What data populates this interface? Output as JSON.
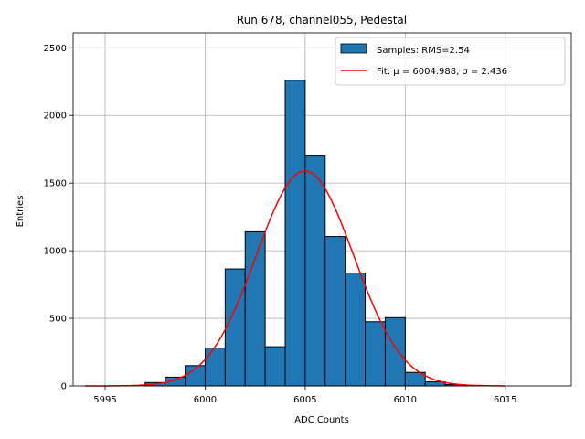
{
  "chart_data": {
    "type": "histogram",
    "title": "Run 678, channel055, Pedestal",
    "xlabel": "ADC Counts",
    "ylabel": "Entries",
    "xlim": [
      5993.4,
      6018.3
    ],
    "ylim": [
      0,
      2610
    ],
    "xticks": [
      5995,
      6000,
      6005,
      6010,
      6015
    ],
    "yticks": [
      0,
      500,
      1000,
      1500,
      2000,
      2500
    ],
    "grid": true,
    "bin_width": 1,
    "bins": [
      {
        "left": 5997,
        "value": 25
      },
      {
        "left": 5998,
        "value": 65
      },
      {
        "left": 5999,
        "value": 150
      },
      {
        "left": 6000,
        "value": 280
      },
      {
        "left": 6001,
        "value": 865
      },
      {
        "left": 6002,
        "value": 1140
      },
      {
        "left": 6003,
        "value": 290
      },
      {
        "left": 6004,
        "value": 2260
      },
      {
        "left": 6005,
        "value": 1700
      },
      {
        "left": 6006,
        "value": 1105
      },
      {
        "left": 6007,
        "value": 835
      },
      {
        "left": 6008,
        "value": 475
      },
      {
        "left": 6009,
        "value": 505
      },
      {
        "left": 6010,
        "value": 100
      },
      {
        "left": 6011,
        "value": 30
      },
      {
        "left": 6012,
        "value": 10
      },
      {
        "left": 6013,
        "value": 3
      }
    ],
    "fit": {
      "mu": 6004.988,
      "sigma": 2.436,
      "amplitude": 1590,
      "x_range": [
        5994,
        6015
      ]
    },
    "legend": {
      "position": "top-right",
      "entries": [
        {
          "label": "Samples: RMS=2.54",
          "kind": "patch"
        },
        {
          "label": "Fit: μ = 6004.988, σ = 2.436",
          "kind": "line"
        }
      ]
    },
    "colors": {
      "bar": "#1f77b4",
      "bar_edge": "#000000",
      "fit": "#ff0000",
      "grid": "#b0b0b0"
    }
  }
}
